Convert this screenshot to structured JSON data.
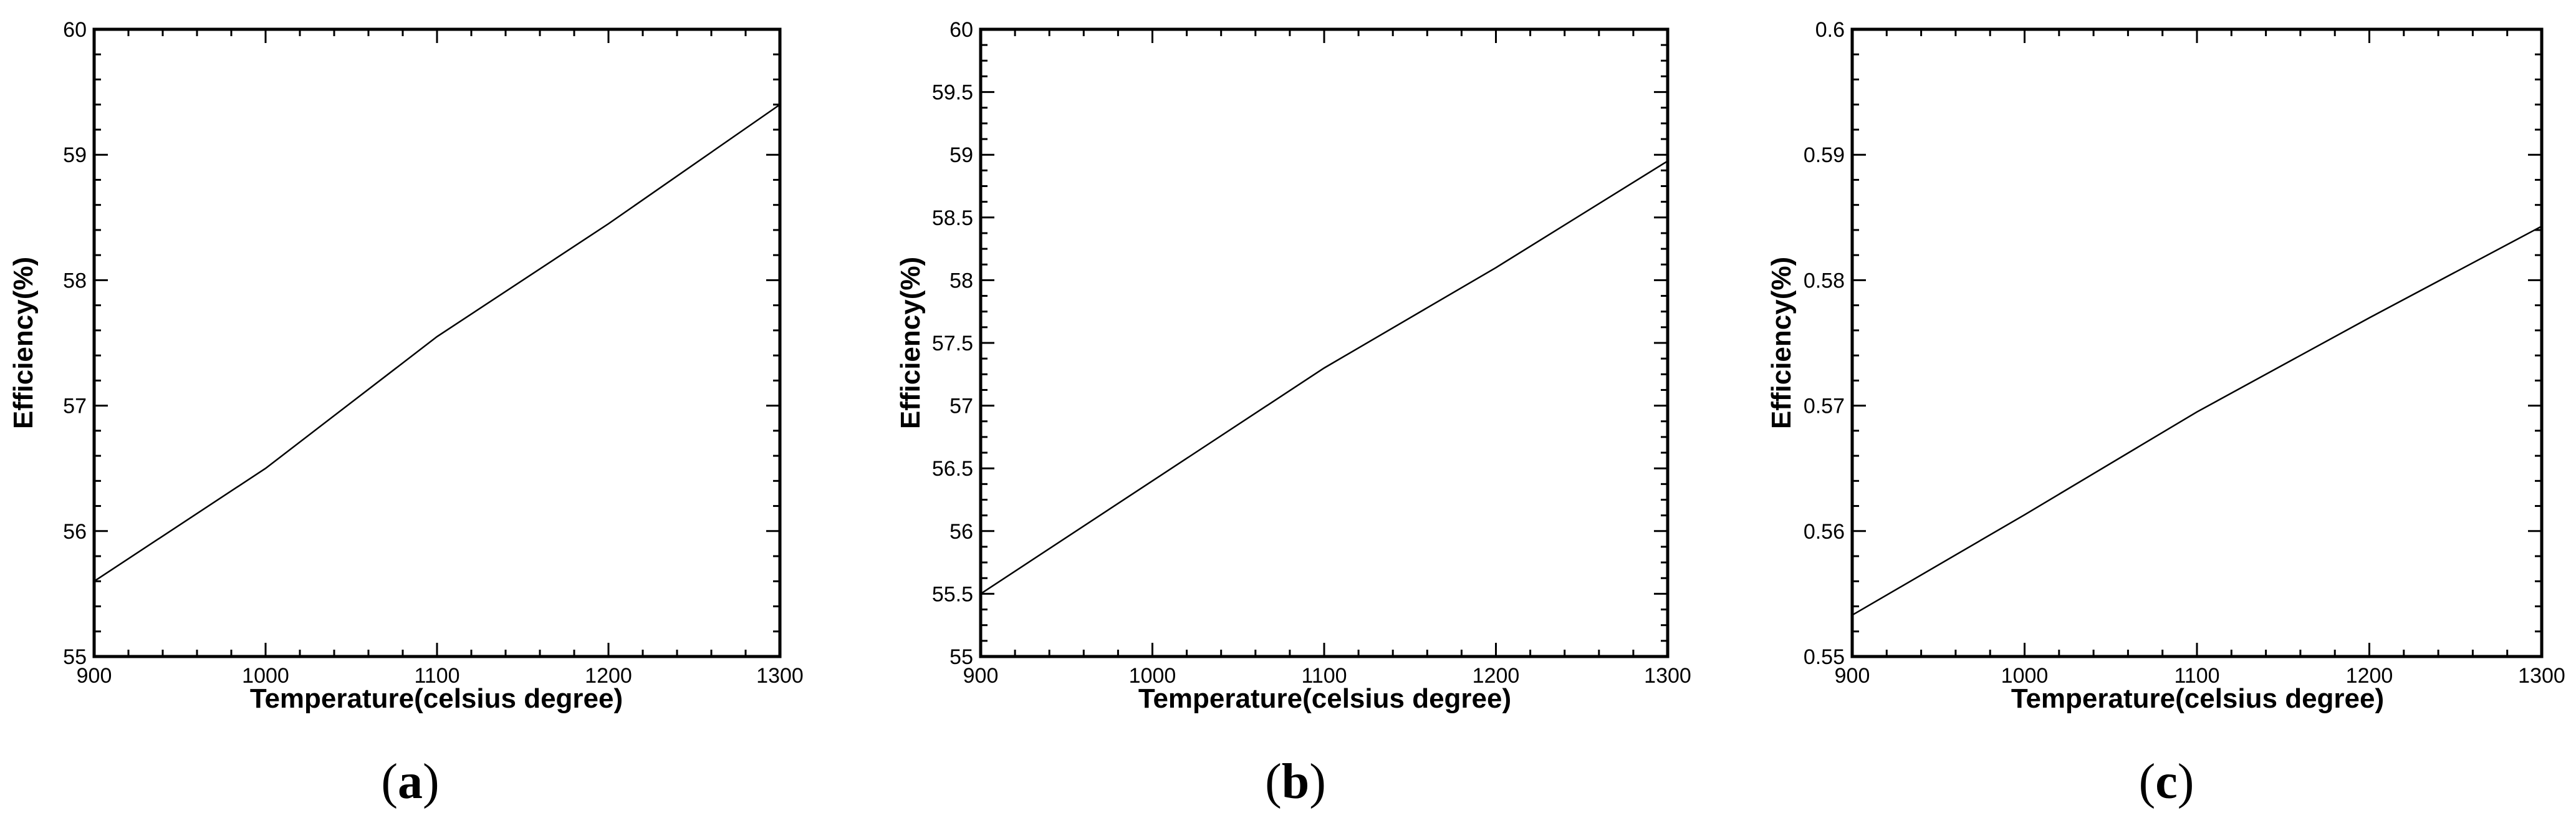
{
  "chart_data": [
    {
      "type": "line",
      "panel_label": "a",
      "xlabel": "Temperature(celsius degree)",
      "ylabel": "Efficiency(%)",
      "xlim": [
        900,
        1300
      ],
      "ylim": [
        55,
        60
      ],
      "x_ticks": [
        900,
        1000,
        1100,
        1200,
        1300
      ],
      "x_tick_labels": [
        "900",
        "1000",
        "1100",
        "1200",
        "1300"
      ],
      "y_ticks": [
        55,
        56,
        57,
        58,
        59,
        60
      ],
      "y_tick_labels": [
        "55",
        "56",
        "57",
        "58",
        "59",
        "60"
      ],
      "x": [
        900,
        1000,
        1100,
        1200,
        1300
      ],
      "series": [
        {
          "values": [
            55.6,
            56.5,
            57.55,
            58.45,
            59.4
          ]
        }
      ]
    },
    {
      "type": "line",
      "panel_label": "b",
      "xlabel": "Temperature(celsius degree)",
      "ylabel": "Efficiency(%)",
      "xlim": [
        900,
        1300
      ],
      "ylim": [
        55,
        60
      ],
      "x_ticks": [
        900,
        1000,
        1100,
        1200,
        1300
      ],
      "x_tick_labels": [
        "900",
        "1000",
        "1100",
        "1200",
        "1300"
      ],
      "y_ticks": [
        55,
        55.5,
        56,
        56.5,
        57,
        57.5,
        58,
        58.5,
        59,
        59.5,
        60
      ],
      "y_tick_labels": [
        "55",
        "55.5",
        "56",
        "56.5",
        "57",
        "57.5",
        "58",
        "58.5",
        "59",
        "59.5",
        "60"
      ],
      "x": [
        900,
        1000,
        1100,
        1200,
        1300
      ],
      "series": [
        {
          "values": [
            55.5,
            56.4,
            57.3,
            58.1,
            58.95
          ]
        }
      ]
    },
    {
      "type": "line",
      "panel_label": "c",
      "xlabel": "Temperature(celsius degree)",
      "ylabel": "Efficiency(%)",
      "xlim": [
        900,
        1300
      ],
      "ylim": [
        0.55,
        0.6
      ],
      "x_ticks": [
        900,
        1000,
        1100,
        1200,
        1300
      ],
      "x_tick_labels": [
        "900",
        "1000",
        "1100",
        "1200",
        "1300"
      ],
      "y_ticks": [
        0.55,
        0.56,
        0.57,
        0.58,
        0.59,
        0.6
      ],
      "y_tick_labels": [
        "0.55",
        "0.56",
        "0.57",
        "0.58",
        "0.59",
        "0.6"
      ],
      "x": [
        900,
        1000,
        1100,
        1200,
        1300
      ],
      "series": [
        {
          "values": [
            0.5533,
            0.5613,
            0.5695,
            0.577,
            0.5843
          ]
        }
      ]
    }
  ]
}
